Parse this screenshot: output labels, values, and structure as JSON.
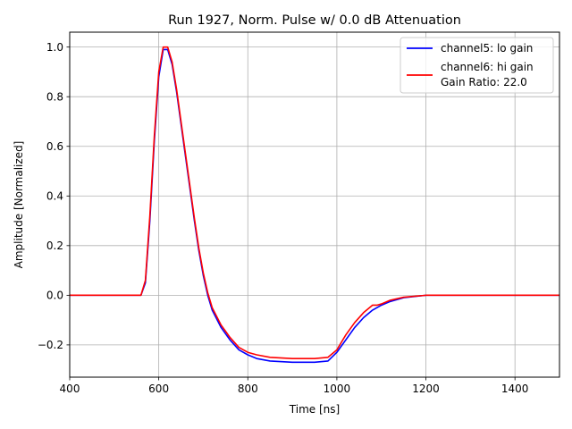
{
  "chart_data": {
    "type": "line",
    "title": "Run 1927, Norm. Pulse w/ 0.0 dB Attenuation",
    "xlabel": "Time [ns]",
    "ylabel": "Amplitude [Normalized]",
    "xlim": [
      400,
      1500
    ],
    "ylim": [
      -0.33,
      1.06
    ],
    "xticks": [
      400,
      600,
      800,
      1000,
      1200,
      1400
    ],
    "yticks": [
      -0.2,
      0.0,
      0.2,
      0.4,
      0.6,
      0.8,
      1.0
    ],
    "xtick_labels": [
      "400",
      "600",
      "800",
      "1000",
      "1200",
      "1400"
    ],
    "ytick_labels": [
      "−0.2",
      "0.0",
      "0.2",
      "0.4",
      "0.6",
      "0.8",
      "1.0"
    ],
    "grid": true,
    "legend_position": "top-right",
    "series": [
      {
        "name": "channel5: lo gain",
        "color": "#0000ff",
        "x": [
          400,
          500,
          560,
          570,
          580,
          590,
          600,
          610,
          620,
          630,
          640,
          650,
          660,
          670,
          680,
          690,
          700,
          710,
          720,
          740,
          760,
          780,
          800,
          820,
          850,
          900,
          950,
          980,
          1000,
          1020,
          1040,
          1060,
          1080,
          1100,
          1120,
          1150,
          1200,
          1300,
          1400,
          1500
        ],
        "y": [
          0.0,
          0.0,
          0.0,
          0.05,
          0.3,
          0.62,
          0.88,
          0.99,
          0.99,
          0.93,
          0.82,
          0.69,
          0.56,
          0.43,
          0.3,
          0.18,
          0.08,
          0.0,
          -0.06,
          -0.13,
          -0.18,
          -0.22,
          -0.24,
          -0.255,
          -0.265,
          -0.27,
          -0.27,
          -0.265,
          -0.23,
          -0.18,
          -0.13,
          -0.09,
          -0.06,
          -0.04,
          -0.025,
          -0.01,
          0.0,
          0.0,
          0.0,
          0.0
        ]
      },
      {
        "name": "channel6: hi gain",
        "color": "#ff0000",
        "x": [
          400,
          500,
          560,
          570,
          580,
          590,
          600,
          610,
          620,
          630,
          640,
          650,
          660,
          670,
          680,
          690,
          700,
          710,
          720,
          740,
          760,
          780,
          800,
          820,
          850,
          900,
          950,
          980,
          1000,
          1020,
          1040,
          1060,
          1080,
          1090,
          1100,
          1120,
          1150,
          1200,
          1300,
          1400,
          1500
        ],
        "y": [
          0.0,
          0.0,
          0.0,
          0.06,
          0.32,
          0.64,
          0.9,
          1.0,
          1.0,
          0.94,
          0.83,
          0.7,
          0.57,
          0.44,
          0.31,
          0.19,
          0.09,
          0.01,
          -0.05,
          -0.12,
          -0.17,
          -0.21,
          -0.23,
          -0.24,
          -0.25,
          -0.255,
          -0.255,
          -0.25,
          -0.22,
          -0.16,
          -0.11,
          -0.07,
          -0.04,
          -0.04,
          -0.035,
          -0.02,
          -0.008,
          0.0,
          0.0,
          0.0,
          0.0
        ]
      }
    ],
    "legend_extra": "Gain Ratio: 22.0"
  }
}
